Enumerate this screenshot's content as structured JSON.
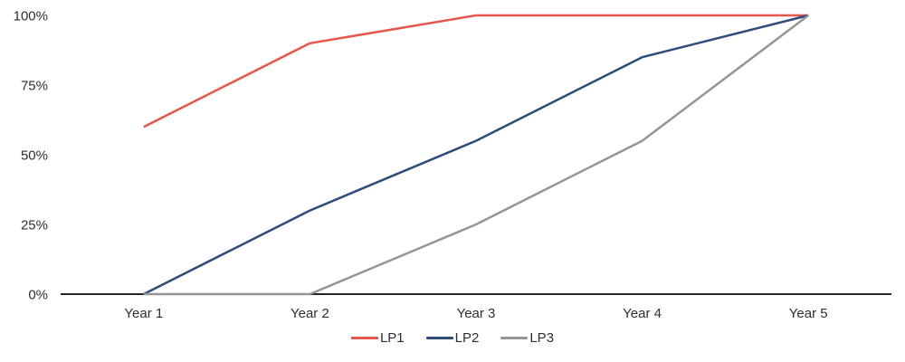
{
  "chart_data": {
    "type": "line",
    "title": "",
    "xlabel": "",
    "ylabel": "",
    "categories": [
      "Year 1",
      "Year 2",
      "Year 3",
      "Year 4",
      "Year 5"
    ],
    "series": [
      {
        "name": "LP1",
        "color": "#E4574D",
        "values": [
          60,
          90,
          100,
          100,
          100
        ]
      },
      {
        "name": "LP2",
        "color": "#2E4B7C",
        "values": [
          0,
          30,
          55,
          85,
          100
        ]
      },
      {
        "name": "LP3",
        "color": "#959595",
        "values": [
          0,
          0,
          25,
          55,
          100
        ]
      }
    ],
    "y_axis": {
      "min": 0,
      "max": 100,
      "tick_labels": [
        "0%",
        "25%",
        "50%",
        "75%",
        "100%"
      ],
      "tick_values": [
        0,
        25,
        50,
        75,
        100
      ],
      "unit": "%"
    },
    "grid": false,
    "legend_position": "bottom"
  },
  "colors": {
    "background": "#FFFFFF",
    "axis_line": "#262626",
    "tick_text": "#2E2E2E"
  }
}
